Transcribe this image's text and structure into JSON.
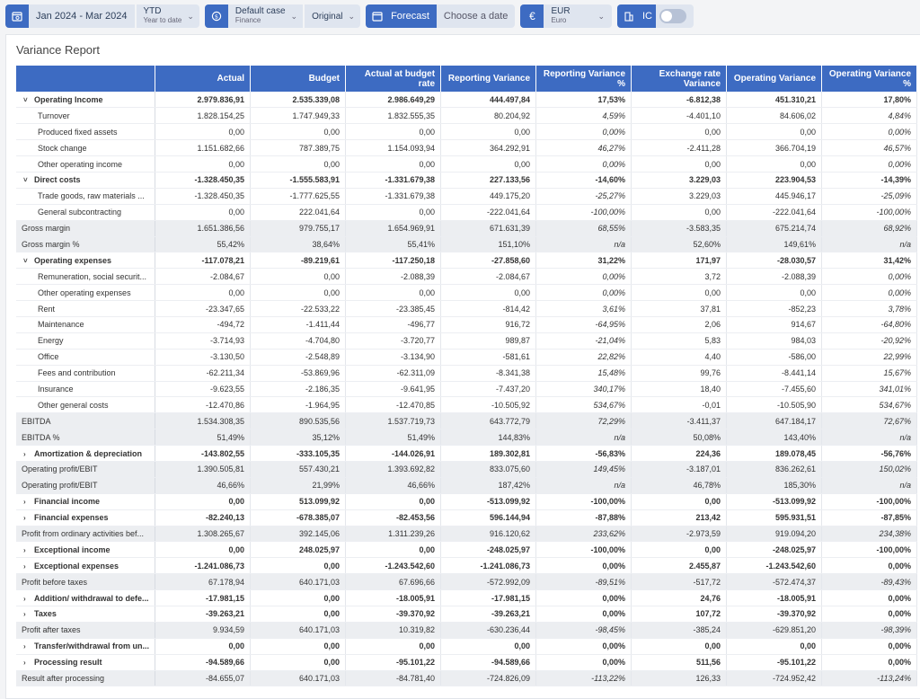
{
  "toolbar": {
    "period": "Jan 2024 - Mar 2024",
    "ytd_label": "YTD",
    "ytd_sub": "Year to date",
    "case_label": "Default case",
    "case_sub": "Finance",
    "original_label": "Original",
    "forecast_label": "Forecast",
    "choose_date": "Choose a date",
    "currency_label": "EUR",
    "currency_sub": "Euro",
    "ic_label": "IC"
  },
  "report": {
    "title": "Variance Report",
    "columns": [
      "",
      "Actual",
      "Budget",
      "Actual at budget rate",
      "Reporting Variance",
      "Reporting Variance %",
      "Exchange rate Variance",
      "Operating Variance",
      "Operating Variance %"
    ],
    "rows": [
      {
        "label": "Operating Income",
        "kind": "group-open",
        "v": [
          "2.979.836,91",
          "2.535.339,08",
          "2.986.649,29",
          "444.497,84",
          "17,53%",
          "-6.812,38",
          "451.310,21",
          "17,80%"
        ]
      },
      {
        "label": "Turnover",
        "kind": "item",
        "v": [
          "1.828.154,25",
          "1.747.949,33",
          "1.832.555,35",
          "80.204,92",
          "4,59%",
          "-4.401,10",
          "84.606,02",
          "4,84%"
        ]
      },
      {
        "label": "Produced fixed assets",
        "kind": "item",
        "v": [
          "0,00",
          "0,00",
          "0,00",
          "0,00",
          "0,00%",
          "0,00",
          "0,00",
          "0,00%"
        ]
      },
      {
        "label": "Stock change",
        "kind": "item",
        "v": [
          "1.151.682,66",
          "787.389,75",
          "1.154.093,94",
          "364.292,91",
          "46,27%",
          "-2.411,28",
          "366.704,19",
          "46,57%"
        ]
      },
      {
        "label": "Other operating income",
        "kind": "item",
        "v": [
          "0,00",
          "0,00",
          "0,00",
          "0,00",
          "0,00%",
          "0,00",
          "0,00",
          "0,00%"
        ]
      },
      {
        "label": "Direct costs",
        "kind": "group-open",
        "v": [
          "-1.328.450,35",
          "-1.555.583,91",
          "-1.331.679,38",
          "227.133,56",
          "-14,60%",
          "3.229,03",
          "223.904,53",
          "-14,39%"
        ]
      },
      {
        "label": "Trade goods, raw materials ...",
        "kind": "item",
        "v": [
          "-1.328.450,35",
          "-1.777.625,55",
          "-1.331.679,38",
          "449.175,20",
          "-25,27%",
          "3.229,03",
          "445.946,17",
          "-25,09%"
        ]
      },
      {
        "label": "General subcontracting",
        "kind": "item",
        "v": [
          "0,00",
          "222.041,64",
          "0,00",
          "-222.041,64",
          "-100,00%",
          "0,00",
          "-222.041,64",
          "-100,00%"
        ]
      },
      {
        "label": "Gross margin",
        "kind": "sum",
        "v": [
          "1.651.386,56",
          "979.755,17",
          "1.654.969,91",
          "671.631,39",
          "68,55%",
          "-3.583,35",
          "675.214,74",
          "68,92%"
        ]
      },
      {
        "label": "Gross margin %",
        "kind": "sum",
        "v": [
          "55,42%",
          "38,64%",
          "55,41%",
          "151,10%",
          "n/a",
          "52,60%",
          "149,61%",
          "n/a"
        ]
      },
      {
        "label": "Operating expenses",
        "kind": "group-open",
        "v": [
          "-117.078,21",
          "-89.219,61",
          "-117.250,18",
          "-27.858,60",
          "31,22%",
          "171,97",
          "-28.030,57",
          "31,42%"
        ]
      },
      {
        "label": "Remuneration, social securit...",
        "kind": "item",
        "v": [
          "-2.084,67",
          "0,00",
          "-2.088,39",
          "-2.084,67",
          "0,00%",
          "3,72",
          "-2.088,39",
          "0,00%"
        ]
      },
      {
        "label": "Other operating expenses",
        "kind": "item",
        "v": [
          "0,00",
          "0,00",
          "0,00",
          "0,00",
          "0,00%",
          "0,00",
          "0,00",
          "0,00%"
        ]
      },
      {
        "label": "Rent",
        "kind": "item",
        "v": [
          "-23.347,65",
          "-22.533,22",
          "-23.385,45",
          "-814,42",
          "3,61%",
          "37,81",
          "-852,23",
          "3,78%"
        ]
      },
      {
        "label": "Maintenance",
        "kind": "item",
        "v": [
          "-494,72",
          "-1.411,44",
          "-496,77",
          "916,72",
          "-64,95%",
          "2,06",
          "914,67",
          "-64,80%"
        ]
      },
      {
        "label": "Energy",
        "kind": "item",
        "v": [
          "-3.714,93",
          "-4.704,80",
          "-3.720,77",
          "989,87",
          "-21,04%",
          "5,83",
          "984,03",
          "-20,92%"
        ]
      },
      {
        "label": "Office",
        "kind": "item",
        "v": [
          "-3.130,50",
          "-2.548,89",
          "-3.134,90",
          "-581,61",
          "22,82%",
          "4,40",
          "-586,00",
          "22,99%"
        ]
      },
      {
        "label": "Fees and contribution",
        "kind": "item",
        "v": [
          "-62.211,34",
          "-53.869,96",
          "-62.311,09",
          "-8.341,38",
          "15,48%",
          "99,76",
          "-8.441,14",
          "15,67%"
        ]
      },
      {
        "label": "Insurance",
        "kind": "item",
        "v": [
          "-9.623,55",
          "-2.186,35",
          "-9.641,95",
          "-7.437,20",
          "340,17%",
          "18,40",
          "-7.455,60",
          "341,01%"
        ]
      },
      {
        "label": "Other general costs",
        "kind": "item",
        "v": [
          "-12.470,86",
          "-1.964,95",
          "-12.470,85",
          "-10.505,92",
          "534,67%",
          "-0,01",
          "-10.505,90",
          "534,67%"
        ]
      },
      {
        "label": "EBITDA",
        "kind": "sum",
        "v": [
          "1.534.308,35",
          "890.535,56",
          "1.537.719,73",
          "643.772,79",
          "72,29%",
          "-3.411,37",
          "647.184,17",
          "72,67%"
        ]
      },
      {
        "label": "EBITDA %",
        "kind": "sum",
        "v": [
          "51,49%",
          "35,12%",
          "51,49%",
          "144,83%",
          "n/a",
          "50,08%",
          "143,40%",
          "n/a"
        ]
      },
      {
        "label": "Amortization & depreciation",
        "kind": "group-closed",
        "v": [
          "-143.802,55",
          "-333.105,35",
          "-144.026,91",
          "189.302,81",
          "-56,83%",
          "224,36",
          "189.078,45",
          "-56,76%"
        ]
      },
      {
        "label": "Operating profit/EBIT",
        "kind": "sum",
        "v": [
          "1.390.505,81",
          "557.430,21",
          "1.393.692,82",
          "833.075,60",
          "149,45%",
          "-3.187,01",
          "836.262,61",
          "150,02%"
        ]
      },
      {
        "label": "Operating profit/EBIT",
        "kind": "sum",
        "v": [
          "46,66%",
          "21,99%",
          "46,66%",
          "187,42%",
          "n/a",
          "46,78%",
          "185,30%",
          "n/a"
        ]
      },
      {
        "label": "Financial income",
        "kind": "group-closed",
        "v": [
          "0,00",
          "513.099,92",
          "0,00",
          "-513.099,92",
          "-100,00%",
          "0,00",
          "-513.099,92",
          "-100,00%"
        ]
      },
      {
        "label": "Financial expenses",
        "kind": "group-closed",
        "v": [
          "-82.240,13",
          "-678.385,07",
          "-82.453,56",
          "596.144,94",
          "-87,88%",
          "213,42",
          "595.931,51",
          "-87,85%"
        ]
      },
      {
        "label": "Profit from ordinary activities bef...",
        "kind": "sum",
        "v": [
          "1.308.265,67",
          "392.145,06",
          "1.311.239,26",
          "916.120,62",
          "233,62%",
          "-2.973,59",
          "919.094,20",
          "234,38%"
        ]
      },
      {
        "label": "Exceptional income",
        "kind": "group-closed",
        "v": [
          "0,00",
          "248.025,97",
          "0,00",
          "-248.025,97",
          "-100,00%",
          "0,00",
          "-248.025,97",
          "-100,00%"
        ]
      },
      {
        "label": "Exceptional expenses",
        "kind": "group-closed",
        "v": [
          "-1.241.086,73",
          "0,00",
          "-1.243.542,60",
          "-1.241.086,73",
          "0,00%",
          "2.455,87",
          "-1.243.542,60",
          "0,00%"
        ]
      },
      {
        "label": "Profit before taxes",
        "kind": "sum",
        "v": [
          "67.178,94",
          "640.171,03",
          "67.696,66",
          "-572.992,09",
          "-89,51%",
          "-517,72",
          "-572.474,37",
          "-89,43%"
        ]
      },
      {
        "label": "Addition/ withdrawal to defe...",
        "kind": "group-closed",
        "v": [
          "-17.981,15",
          "0,00",
          "-18.005,91",
          "-17.981,15",
          "0,00%",
          "24,76",
          "-18.005,91",
          "0,00%"
        ]
      },
      {
        "label": "Taxes",
        "kind": "group-closed",
        "v": [
          "-39.263,21",
          "0,00",
          "-39.370,92",
          "-39.263,21",
          "0,00%",
          "107,72",
          "-39.370,92",
          "0,00%"
        ]
      },
      {
        "label": "Profit after taxes",
        "kind": "sum",
        "v": [
          "9.934,59",
          "640.171,03",
          "10.319,82",
          "-630.236,44",
          "-98,45%",
          "-385,24",
          "-629.851,20",
          "-98,39%"
        ]
      },
      {
        "label": "Transfer/withdrawal from un...",
        "kind": "group-closed",
        "v": [
          "0,00",
          "0,00",
          "0,00",
          "0,00",
          "0,00%",
          "0,00",
          "0,00",
          "0,00%"
        ]
      },
      {
        "label": "Processing result",
        "kind": "group-closed",
        "v": [
          "-94.589,66",
          "0,00",
          "-95.101,22",
          "-94.589,66",
          "0,00%",
          "511,56",
          "-95.101,22",
          "0,00%"
        ]
      },
      {
        "label": "Result after processing",
        "kind": "sum",
        "v": [
          "-84.655,07",
          "640.171,03",
          "-84.781,40",
          "-724.826,09",
          "-113,22%",
          "126,33",
          "-724.952,42",
          "-113,24%"
        ]
      }
    ]
  }
}
